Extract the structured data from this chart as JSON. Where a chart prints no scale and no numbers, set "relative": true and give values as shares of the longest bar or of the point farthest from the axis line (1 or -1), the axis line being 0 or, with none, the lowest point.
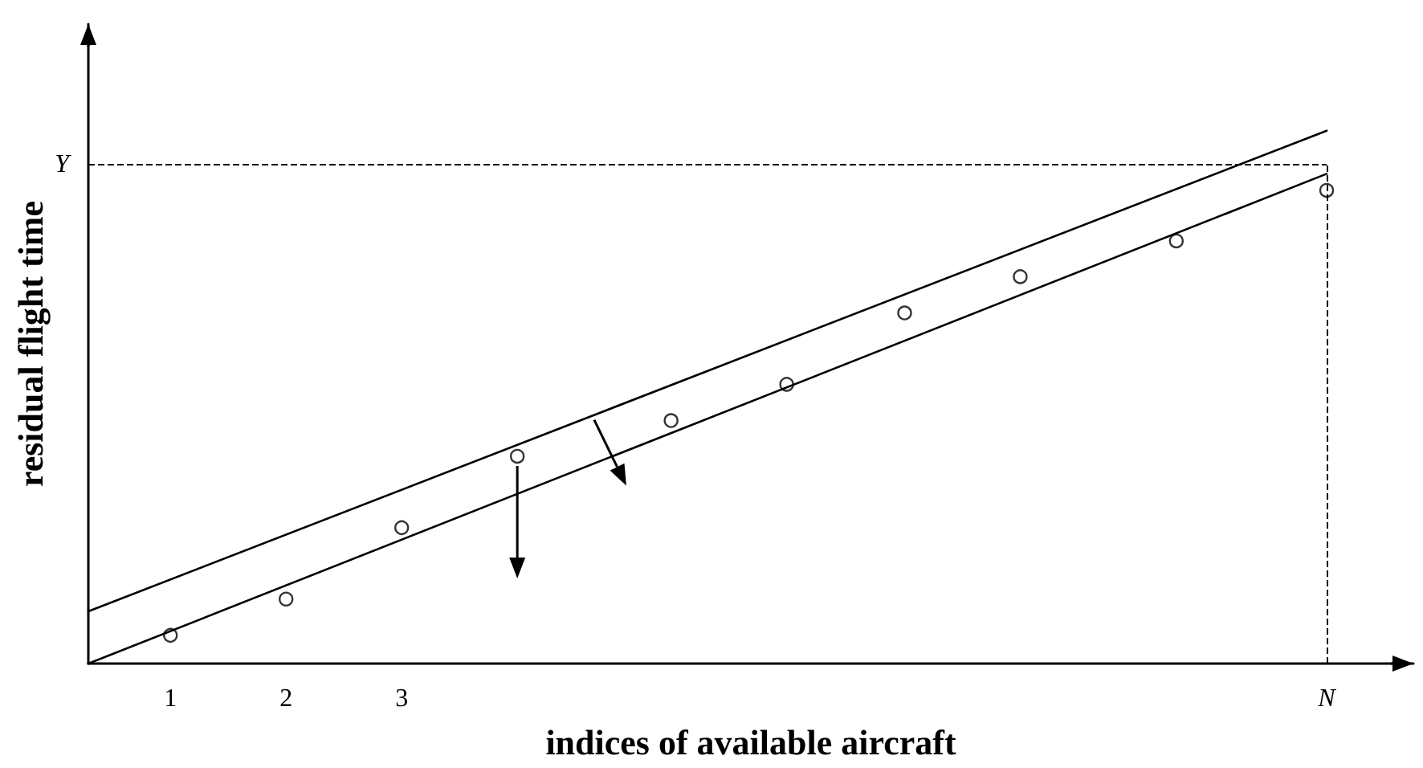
{
  "chart_data": {
    "type": "scatter",
    "xlabel": "indices of available aircraft",
    "ylabel": "residual flight time",
    "relative": true,
    "grid": false,
    "xlim": [
      0.29,
      11.75
    ],
    "xticks": [
      1,
      2,
      3,
      {
        "value": 11,
        "label": "N"
      }
    ],
    "ref_lines": [
      {
        "axis": "y",
        "value": 0.936,
        "label": "Y",
        "line_style": "dashed",
        "color": "#000000"
      },
      {
        "axis": "x",
        "value": 11,
        "label": null,
        "line_style": "dashed",
        "color": "#000000"
      }
    ],
    "series": [
      {
        "type": "scatter",
        "color": "#000000",
        "marker": "circle",
        "x": [
          1,
          2,
          3,
          4,
          5.33,
          6.33,
          7.35,
          8.35,
          9.7,
          11
        ],
        "values": [
          0.053,
          0.121,
          0.255,
          0.389,
          0.456,
          0.524,
          0.658,
          0.726,
          0.793,
          0.888
        ]
      },
      {
        "type": "line",
        "color": "#000000",
        "marker": "none",
        "line_style": "solid",
        "x": [
          0.29,
          11
        ],
        "values": [
          0,
          0.919
        ]
      },
      {
        "type": "line",
        "color": "#000000",
        "marker": "none",
        "line_style": "solid",
        "x": [
          0.29,
          11.0
        ],
        "values": [
          0.098,
          1
        ]
      }
    ]
  }
}
